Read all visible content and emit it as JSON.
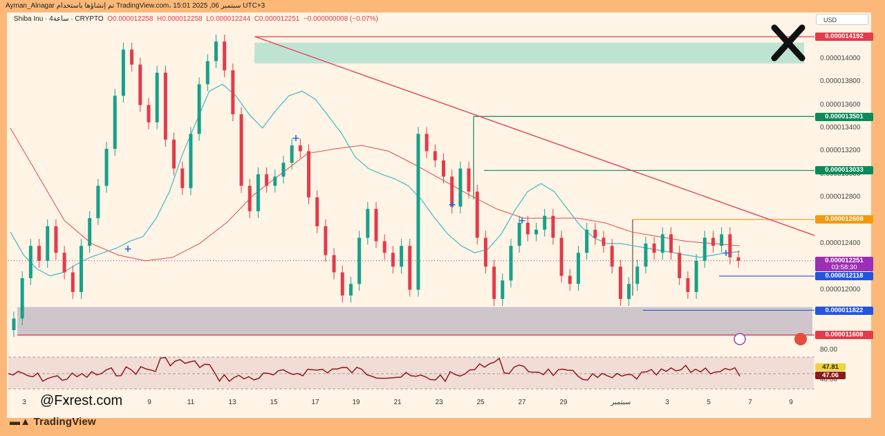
{
  "top_bar": {
    "text": "Ayman_Alnagar تم إنشاؤها باستخدام TradingView.com، 15:01 2025 ,06 سبتمبر UTC+3"
  },
  "header": {
    "symbol": "Shiba Inu · 4ساعة · CRYPTO",
    "open": "O0.000012258",
    "high": "H0.000012258",
    "low": "L0.000012244",
    "close": "C0.000012251",
    "change": "−0.000000008 (−0.07%)"
  },
  "currency_button": "USD",
  "watermark": "@Fxrest.com",
  "brand": "TradingView",
  "colors": {
    "up": "#18a08a",
    "down": "#e23b4b",
    "ma_fast": "#3bbcc8",
    "ma_slow": "#e34a4a",
    "trendline": "#e8405a",
    "supply_zone": "#bfe3d3",
    "demand_zone": "#cfc6cc",
    "rsi": "#8b1a1a",
    "level_green": "#0a8a5a",
    "level_orange": "#f39a0c",
    "level_blue": "#2454e0",
    "current": "#9b2fb5"
  },
  "chart_data": {
    "type": "candlestick",
    "price_axis": [
      "0.000014000",
      "0.000013800",
      "0.000013600",
      "0.000013400",
      "0.000013200",
      "0.000013000",
      "0.000012800",
      "0.000012400",
      "0.000012000"
    ],
    "date_axis": [
      "3",
      "7",
      "9",
      "11",
      "13",
      "15",
      "17",
      "19",
      "21",
      "23",
      "25",
      "27",
      "29",
      "سبتمبر",
      "3",
      "5",
      "7",
      "9"
    ],
    "price_levels": [
      {
        "label": "0.000014192",
        "value": 1.4192e-05,
        "color": "#e23b4b"
      },
      {
        "label": "0.000013501",
        "value": 1.3501e-05,
        "color": "#0a8a5a"
      },
      {
        "label": "0.000013033",
        "value": 1.3033e-05,
        "color": "#0a8a5a"
      },
      {
        "label": "0.000012608",
        "value": 1.2608e-05,
        "color": "#f39a0c"
      },
      {
        "label": "0.000012251",
        "value": 1.2251e-05,
        "color": "#9b2fb5"
      },
      {
        "label": "0.000012118",
        "value": 1.2118e-05,
        "color": "#2454e0"
      },
      {
        "label": "0.000011822",
        "value": 1.1822e-05,
        "color": "#2454e0"
      },
      {
        "label": "0.000011608",
        "value": 1.1608e-05,
        "color": "#e23b4b"
      }
    ],
    "countdown": "03:58:30",
    "ylim": [
      1.16e-05,
      1.43e-05
    ],
    "close_path": [
      1.175e-05,
      1.21e-05,
      1.238e-05,
      1.225e-05,
      1.255e-05,
      1.232e-05,
      1.215e-05,
      1.198e-05,
      1.238e-05,
      1.262e-05,
      1.29e-05,
      1.322e-05,
      1.368e-05,
      1.408e-05,
      1.395e-05,
      1.36e-05,
      1.345e-05,
      1.388e-05,
      1.33e-05,
      1.305e-05,
      1.288e-05,
      1.335e-05,
      1.378e-05,
      1.398e-05,
      1.415e-05,
      1.39e-05,
      1.352e-05,
      1.29e-05,
      1.268e-05,
      1.3e-05,
      1.29e-05,
      1.298e-05,
      1.31e-05,
      1.325e-05,
      1.32e-05,
      1.28e-05,
      1.255e-05,
      1.23e-05,
      1.215e-05,
      1.195e-05,
      1.205e-05,
      1.245e-05,
      1.27e-05,
      1.242e-05,
      1.232e-05,
      1.22e-05,
      1.238e-05,
      1.2e-05,
      1.335e-05,
      1.32e-05,
      1.312e-05,
      1.298e-05,
      1.272e-05,
      1.305e-05,
      1.285e-05,
      1.245e-05,
      1.22e-05,
      1.192e-05,
      1.208e-05,
      1.238e-05,
      1.258e-05,
      1.248e-05,
      1.252e-05,
      1.264e-05,
      1.245e-05,
      1.212e-05,
      1.205e-05,
      1.232e-05,
      1.252e-05,
      1.245e-05,
      1.238e-05,
      1.22e-05,
      1.192e-05,
      1.205e-05,
      1.22e-05,
      1.24e-05,
      1.232e-05,
      1.248e-05,
      1.232e-05,
      1.21e-05,
      1.198e-05,
      1.225e-05,
      1.245e-05,
      1.238e-05,
      1.248e-05,
      1.228e-05,
      1.225e-05
    ],
    "ma_fast": [
      1.25e-05,
      1.23e-05,
      1.218e-05,
      1.212e-05,
      1.215e-05,
      1.222e-05,
      1.228e-05,
      1.232e-05,
      1.236e-05,
      1.242e-05,
      1.246e-05,
      1.262e-05,
      1.285e-05,
      1.318e-05,
      1.345e-05,
      1.372e-05,
      1.378e-05,
      1.368e-05,
      1.352e-05,
      1.34e-05,
      1.355e-05,
      1.368e-05,
      1.372e-05,
      1.365e-05,
      1.35e-05,
      1.335e-05,
      1.315e-05,
      1.305e-05,
      1.3e-05,
      1.296e-05,
      1.29e-05,
      1.278e-05,
      1.262e-05,
      1.248e-05,
      1.238e-05,
      1.232e-05,
      1.235e-05,
      1.248e-05,
      1.268e-05,
      1.285e-05,
      1.292e-05,
      1.285e-05,
      1.27e-05,
      1.255e-05,
      1.245e-05,
      1.24e-05,
      1.24e-05,
      1.238e-05,
      1.236e-05,
      1.234e-05,
      1.232e-05,
      1.23e-05,
      1.228e-05,
      1.23e-05,
      1.232e-05,
      1.233e-05
    ],
    "ma_slow": [
      1.34e-05,
      1.3e-05,
      1.26e-05,
      1.24e-05,
      1.23e-05,
      1.225e-05,
      1.228e-05,
      1.24e-05,
      1.258e-05,
      1.282e-05,
      1.3e-05,
      1.318e-05,
      1.322e-05,
      1.325e-05,
      1.32e-05,
      1.308e-05,
      1.295e-05,
      1.282e-05,
      1.27e-05,
      1.262e-05,
      1.262e-05,
      1.262e-05,
      1.258e-05,
      1.25e-05,
      1.246e-05,
      1.242e-05,
      1.24e-05,
      1.238e-05
    ],
    "rsi": {
      "values": [
        47.81,
        47.06
      ],
      "axis": [
        "80.00",
        "40.00"
      ],
      "levels": [
        70,
        50,
        30
      ]
    },
    "annotations": {
      "supply_zone": [
        1.414e-05,
        1.396e-05
      ],
      "demand_zone": [
        1.185e-05,
        1.16e-05
      ],
      "trendline": [
        [
          1.419e-05
        ],
        [
          1.25e-05
        ]
      ]
    }
  }
}
